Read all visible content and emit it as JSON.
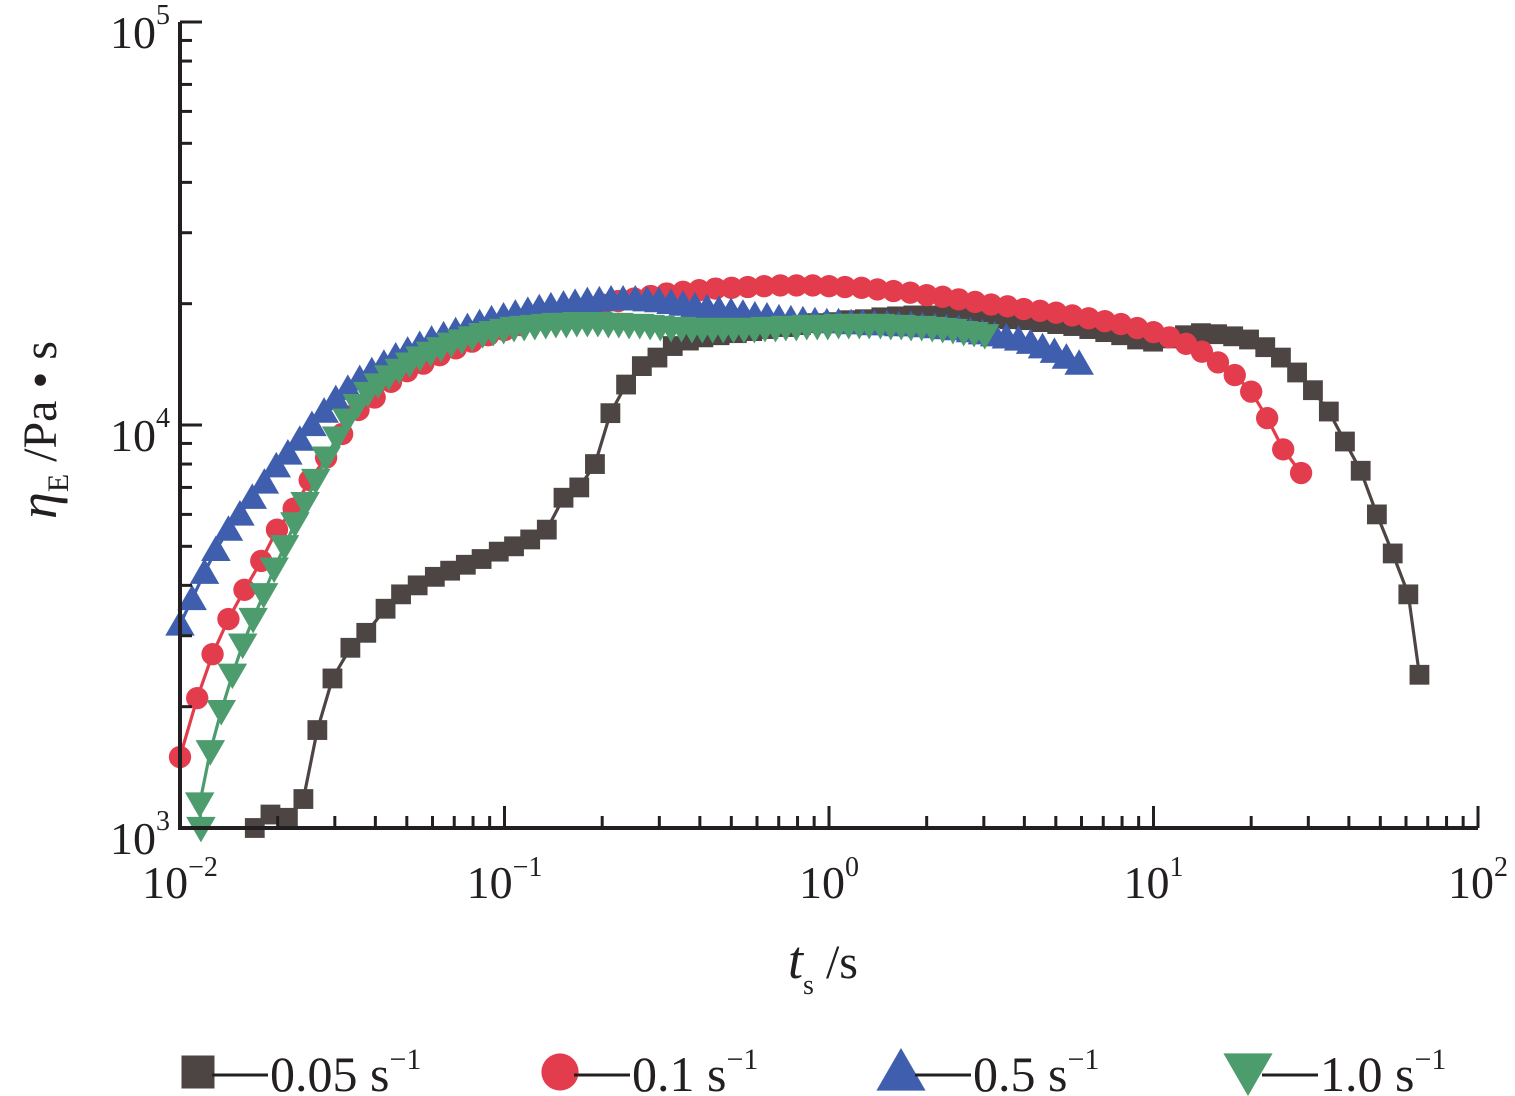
{
  "chart_data": {
    "type": "line",
    "xscale": "log",
    "yscale": "log",
    "xlim": [
      0.01,
      100
    ],
    "ylim": [
      1000,
      100000
    ],
    "x_ticks": [
      {
        "base": "10",
        "exp": "−2"
      },
      {
        "base": "10",
        "exp": "−1"
      },
      {
        "base": "10",
        "exp": "0"
      },
      {
        "base": "10",
        "exp": "1"
      },
      {
        "base": "10",
        "exp": "2"
      }
    ],
    "y_ticks": [
      {
        "base": "10",
        "exp": "3"
      },
      {
        "base": "10",
        "exp": "4"
      },
      {
        "base": "10",
        "exp": "5"
      }
    ],
    "xlabel": {
      "symbol": "t",
      "subscript": "s",
      "unit": " /s"
    },
    "ylabel": {
      "symbol": "η",
      "subscript": "E",
      "unit": " /Pa • s"
    },
    "grid": false,
    "legend_position": "bottom",
    "series": [
      {
        "name": "0.05 s",
        "name_sup": "−1",
        "color": "#4d4544",
        "marker": "square",
        "points": [
          [
            0.017,
            1000
          ],
          [
            0.019,
            1080
          ],
          [
            0.0215,
            1060
          ],
          [
            0.024,
            1180
          ],
          [
            0.0265,
            1750
          ],
          [
            0.0295,
            2350
          ],
          [
            0.0335,
            2800
          ],
          [
            0.0375,
            3050
          ],
          [
            0.043,
            3500
          ],
          [
            0.048,
            3800
          ],
          [
            0.054,
            4000
          ],
          [
            0.061,
            4200
          ],
          [
            0.068,
            4350
          ],
          [
            0.076,
            4500
          ],
          [
            0.085,
            4650
          ],
          [
            0.096,
            4850
          ],
          [
            0.107,
            5000
          ],
          [
            0.12,
            5200
          ],
          [
            0.135,
            5500
          ],
          [
            0.152,
            6600
          ],
          [
            0.17,
            7000
          ],
          [
            0.19,
            8000
          ],
          [
            0.212,
            10700
          ],
          [
            0.237,
            12600
          ],
          [
            0.265,
            14000
          ],
          [
            0.296,
            14700
          ],
          [
            0.33,
            15700
          ],
          [
            0.37,
            16200
          ],
          [
            0.41,
            16500
          ],
          [
            0.46,
            16700
          ],
          [
            0.52,
            16900
          ],
          [
            0.58,
            17100
          ],
          [
            0.65,
            17300
          ],
          [
            0.73,
            17500
          ],
          [
            0.82,
            17700
          ],
          [
            0.92,
            17900
          ],
          [
            1.03,
            18000
          ],
          [
            1.15,
            18200
          ],
          [
            1.29,
            18300
          ],
          [
            1.45,
            18500
          ],
          [
            1.62,
            18600
          ],
          [
            1.82,
            18700
          ],
          [
            2.04,
            18700
          ],
          [
            2.28,
            18700
          ],
          [
            2.56,
            18600
          ],
          [
            2.87,
            18500
          ],
          [
            3.21,
            18400
          ],
          [
            3.6,
            18300
          ],
          [
            4.03,
            18200
          ],
          [
            4.51,
            18000
          ],
          [
            5.05,
            17800
          ],
          [
            5.66,
            17600
          ],
          [
            6.34,
            17300
          ],
          [
            7.1,
            17000
          ],
          [
            7.95,
            16700
          ],
          [
            8.9,
            16300
          ],
          [
            9.97,
            16100
          ],
          [
            11.2,
            16400
          ],
          [
            12.5,
            16700
          ],
          [
            14.0,
            16900
          ],
          [
            15.7,
            16800
          ],
          [
            17.6,
            16600
          ],
          [
            19.7,
            16300
          ],
          [
            22.1,
            15600
          ],
          [
            24.7,
            14700
          ],
          [
            27.7,
            13500
          ],
          [
            31.0,
            12200
          ],
          [
            34.7,
            10800
          ],
          [
            38.9,
            9100
          ],
          [
            43.5,
            7700
          ],
          [
            48.8,
            6000
          ],
          [
            54.6,
            4800
          ],
          [
            61.0,
            3800
          ],
          [
            66.0,
            2400
          ]
        ]
      },
      {
        "name": "0.1 s",
        "name_sup": "−1",
        "color": "#e33c4d",
        "marker": "circle",
        "points": [
          [
            0.01,
            1500
          ],
          [
            0.0113,
            2100
          ],
          [
            0.0126,
            2700
          ],
          [
            0.0141,
            3300
          ],
          [
            0.0158,
            3900
          ],
          [
            0.0178,
            4600
          ],
          [
            0.0199,
            5500
          ],
          [
            0.0224,
            6200
          ],
          [
            0.0251,
            7300
          ],
          [
            0.0282,
            8300
          ],
          [
            0.0316,
            9500
          ],
          [
            0.0355,
            10900
          ],
          [
            0.0398,
            11700
          ],
          [
            0.0447,
            12800
          ],
          [
            0.0501,
            13600
          ],
          [
            0.0562,
            14200
          ],
          [
            0.0631,
            14900
          ],
          [
            0.0708,
            15500
          ],
          [
            0.0794,
            16100
          ],
          [
            0.0891,
            16700
          ],
          [
            0.1,
            17200
          ],
          [
            0.112,
            17700
          ],
          [
            0.126,
            18200
          ],
          [
            0.141,
            18700
          ],
          [
            0.158,
            19100
          ],
          [
            0.178,
            19500
          ],
          [
            0.2,
            19900
          ],
          [
            0.224,
            20300
          ],
          [
            0.251,
            20600
          ],
          [
            0.282,
            20900
          ],
          [
            0.316,
            21200
          ],
          [
            0.355,
            21400
          ],
          [
            0.398,
            21600
          ],
          [
            0.447,
            21800
          ],
          [
            0.501,
            21900
          ],
          [
            0.562,
            22000
          ],
          [
            0.631,
            22100
          ],
          [
            0.708,
            22200
          ],
          [
            0.794,
            22200
          ],
          [
            0.891,
            22200
          ],
          [
            1.0,
            22100
          ],
          [
            1.12,
            22000
          ],
          [
            1.26,
            21900
          ],
          [
            1.41,
            21700
          ],
          [
            1.58,
            21500
          ],
          [
            1.78,
            21300
          ],
          [
            2.0,
            21000
          ],
          [
            2.24,
            20800
          ],
          [
            2.51,
            20500
          ],
          [
            2.82,
            20200
          ],
          [
            3.16,
            19900
          ],
          [
            3.55,
            19700
          ],
          [
            3.98,
            19400
          ],
          [
            4.47,
            19200
          ],
          [
            5.01,
            19000
          ],
          [
            5.62,
            18700
          ],
          [
            6.31,
            18400
          ],
          [
            7.08,
            18100
          ],
          [
            7.94,
            17800
          ],
          [
            8.91,
            17400
          ],
          [
            10.0,
            17000
          ],
          [
            11.2,
            16500
          ],
          [
            12.6,
            15900
          ],
          [
            14.1,
            15200
          ],
          [
            15.8,
            14300
          ],
          [
            17.8,
            13300
          ],
          [
            20.0,
            12100
          ],
          [
            22.4,
            10400
          ],
          [
            25.1,
            8700
          ],
          [
            28.5,
            7600
          ]
        ]
      },
      {
        "name": "0.5 s",
        "name_sup": "−1",
        "color": "#3f5fae",
        "marker": "triangle-up",
        "points": [
          [
            0.01,
            3200
          ],
          [
            0.0109,
            3700
          ],
          [
            0.0119,
            4300
          ],
          [
            0.0129,
            4900
          ],
          [
            0.0141,
            5500
          ],
          [
            0.0153,
            6000
          ],
          [
            0.0167,
            6600
          ],
          [
            0.0182,
            7200
          ],
          [
            0.0198,
            7900
          ],
          [
            0.0215,
            8500
          ],
          [
            0.0234,
            9200
          ],
          [
            0.0255,
            10000
          ],
          [
            0.0278,
            10800
          ],
          [
            0.0302,
            11600
          ],
          [
            0.0329,
            12300
          ],
          [
            0.0358,
            13000
          ],
          [
            0.039,
            13600
          ],
          [
            0.0425,
            14200
          ],
          [
            0.0462,
            14800
          ],
          [
            0.0503,
            15300
          ],
          [
            0.0548,
            15800
          ],
          [
            0.0596,
            16300
          ],
          [
            0.0649,
            16700
          ],
          [
            0.0707,
            17100
          ],
          [
            0.0769,
            17500
          ],
          [
            0.0838,
            17900
          ],
          [
            0.0912,
            18300
          ],
          [
            0.0993,
            18600
          ],
          [
            0.108,
            18900
          ],
          [
            0.118,
            19200
          ],
          [
            0.128,
            19500
          ],
          [
            0.139,
            19700
          ],
          [
            0.152,
            19900
          ],
          [
            0.165,
            20100
          ],
          [
            0.18,
            20300
          ],
          [
            0.196,
            20400
          ],
          [
            0.213,
            20500
          ],
          [
            0.232,
            20500
          ],
          [
            0.253,
            20500
          ],
          [
            0.275,
            20400
          ],
          [
            0.299,
            20300
          ],
          [
            0.326,
            20100
          ],
          [
            0.355,
            19900
          ],
          [
            0.386,
            19700
          ],
          [
            0.421,
            19500
          ],
          [
            0.458,
            19300
          ],
          [
            0.499,
            19100
          ],
          [
            0.543,
            18900
          ],
          [
            0.591,
            18700
          ],
          [
            0.644,
            18600
          ],
          [
            0.701,
            18400
          ],
          [
            0.763,
            18300
          ],
          [
            0.831,
            18200
          ],
          [
            0.905,
            18100
          ],
          [
            0.985,
            18000
          ],
          [
            1.07,
            18000
          ],
          [
            1.17,
            17900
          ],
          [
            1.27,
            17900
          ],
          [
            1.38,
            17800
          ],
          [
            1.51,
            17800
          ],
          [
            1.64,
            17700
          ],
          [
            1.79,
            17700
          ],
          [
            1.94,
            17600
          ],
          [
            2.12,
            17500
          ],
          [
            2.3,
            17400
          ],
          [
            2.51,
            17300
          ],
          [
            2.73,
            17100
          ],
          [
            2.97,
            16900
          ],
          [
            3.24,
            16700
          ],
          [
            3.52,
            16500
          ],
          [
            3.84,
            16300
          ],
          [
            4.18,
            16000
          ],
          [
            4.55,
            15600
          ],
          [
            4.95,
            15200
          ],
          [
            5.39,
            14700
          ],
          [
            5.9,
            14200
          ]
        ]
      },
      {
        "name": "1.0 s",
        "name_sup": "−1",
        "color": "#4c9c6e",
        "marker": "triangle-down",
        "points": [
          [
            0.0116,
            1000
          ],
          [
            0.0115,
            1150
          ],
          [
            0.0124,
            1550
          ],
          [
            0.0134,
            1950
          ],
          [
            0.0145,
            2400
          ],
          [
            0.0156,
            2850
          ],
          [
            0.0168,
            3300
          ],
          [
            0.0181,
            3800
          ],
          [
            0.0195,
            4400
          ],
          [
            0.021,
            5000
          ],
          [
            0.0226,
            5700
          ],
          [
            0.0243,
            6400
          ],
          [
            0.0262,
            7300
          ],
          [
            0.0282,
            8300
          ],
          [
            0.0304,
            9300
          ],
          [
            0.0327,
            10300
          ],
          [
            0.0352,
            11200
          ],
          [
            0.0379,
            12000
          ],
          [
            0.0408,
            12600
          ],
          [
            0.044,
            13200
          ],
          [
            0.0474,
            13700
          ],
          [
            0.051,
            14200
          ],
          [
            0.0549,
            14700
          ],
          [
            0.0592,
            15100
          ],
          [
            0.0637,
            15500
          ],
          [
            0.0686,
            15900
          ],
          [
            0.0739,
            16200
          ],
          [
            0.0796,
            16500
          ],
          [
            0.0857,
            16800
          ],
          [
            0.0923,
            17000
          ],
          [
            0.0994,
            17200
          ],
          [
            0.107,
            17400
          ],
          [
            0.115,
            17500
          ],
          [
            0.124,
            17600
          ],
          [
            0.134,
            17700
          ],
          [
            0.144,
            17800
          ],
          [
            0.155,
            17800
          ],
          [
            0.167,
            17900
          ],
          [
            0.18,
            17900
          ],
          [
            0.194,
            17900
          ],
          [
            0.209,
            17800
          ],
          [
            0.225,
            17800
          ],
          [
            0.242,
            17700
          ],
          [
            0.261,
            17700
          ],
          [
            0.281,
            17600
          ],
          [
            0.302,
            17500
          ],
          [
            0.326,
            17400
          ],
          [
            0.351,
            17400
          ],
          [
            0.378,
            17300
          ],
          [
            0.407,
            17300
          ],
          [
            0.438,
            17300
          ],
          [
            0.472,
            17300
          ],
          [
            0.508,
            17300
          ],
          [
            0.547,
            17300
          ],
          [
            0.589,
            17300
          ],
          [
            0.635,
            17400
          ],
          [
            0.684,
            17400
          ],
          [
            0.736,
            17500
          ],
          [
            0.793,
            17500
          ],
          [
            0.854,
            17600
          ],
          [
            0.92,
            17600
          ],
          [
            0.991,
            17600
          ],
          [
            1.07,
            17700
          ],
          [
            1.15,
            17700
          ],
          [
            1.24,
            17700
          ],
          [
            1.33,
            17700
          ],
          [
            1.44,
            17700
          ],
          [
            1.55,
            17600
          ],
          [
            1.67,
            17600
          ],
          [
            1.79,
            17500
          ],
          [
            1.93,
            17500
          ],
          [
            2.08,
            17400
          ],
          [
            2.24,
            17300
          ],
          [
            2.41,
            17200
          ],
          [
            2.6,
            17000
          ],
          [
            2.8,
            16900
          ],
          [
            3.02,
            16700
          ]
        ]
      }
    ]
  }
}
